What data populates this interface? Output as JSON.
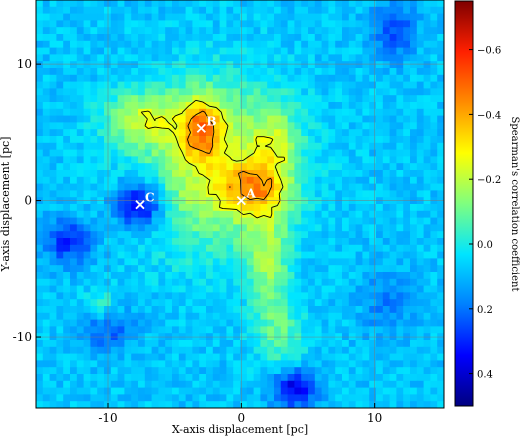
{
  "chart_data": {
    "type": "heatmap",
    "title": "",
    "xlabel": "X-axis displacement [pc]",
    "ylabel": "Y-axis displacement [pc]",
    "xlim": [
      -15.4,
      15.2
    ],
    "ylim": [
      -15.2,
      14.7
    ],
    "xticks": [
      {
        "value": -10,
        "label": "-10"
      },
      {
        "value": 0,
        "label": "0"
      },
      {
        "value": 10,
        "label": "10"
      }
    ],
    "yticks": [
      {
        "value": 10,
        "label": "10"
      },
      {
        "value": 0,
        "label": "0"
      },
      {
        "value": -10,
        "label": "-10"
      }
    ],
    "grid": true,
    "colorbar": {
      "label": "Spearman's correlation coefficient",
      "range": [
        0.5,
        -0.75
      ],
      "colormap": [
        "#00007f",
        "#0000ff",
        "#007fff",
        "#00e5ff",
        "#7fff7f",
        "#ffff00",
        "#ff8c00",
        "#ff2000",
        "#7f0000"
      ],
      "ticks": [
        {
          "value": -0.6,
          "label": "−0.6"
        },
        {
          "value": -0.4,
          "label": "−0.4"
        },
        {
          "value": -0.2,
          "label": "−0.2"
        },
        {
          "value": 0.0,
          "label": "0.0"
        },
        {
          "value": 0.2,
          "label": "0.2"
        },
        {
          "value": 0.4,
          "label": "0.4"
        }
      ]
    },
    "features": [
      {
        "name": "A",
        "x": 0.0,
        "y": 0.0,
        "value": -0.55
      },
      {
        "name": "B",
        "x": -3.0,
        "y": 5.3,
        "value": -0.72
      },
      {
        "name": "C",
        "x": -7.6,
        "y": -0.3,
        "value": 0.32
      }
    ],
    "contour_levels": [
      -0.55,
      -0.4,
      -0.25
    ]
  }
}
